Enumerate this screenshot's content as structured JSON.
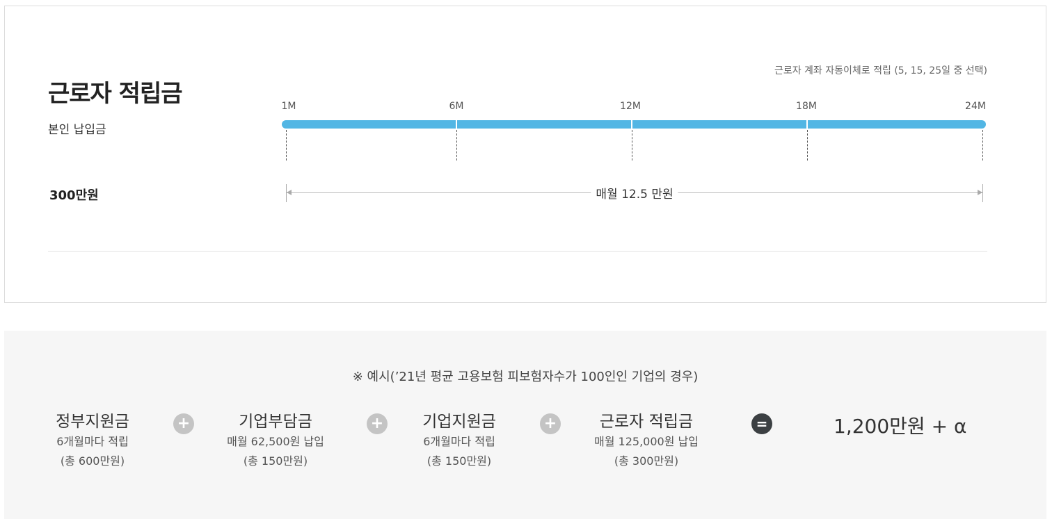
{
  "savings": {
    "title": "근로자 적립금",
    "subtitle": "본인 납입금",
    "amount": "300만원",
    "transfer_note": "근로자 계좌 자동이체로 적립 (5, 15, 25일 중 선택)",
    "ticks": [
      "1M",
      "6M",
      "12M",
      "18M",
      "24M"
    ],
    "monthly_label": "매월 12.5 만원",
    "bar_color": "#52b6e4"
  },
  "example": {
    "caption": "※ 예시(’21년 평균 고용보험 피보험자수가 100인인 기업의 경우)",
    "items": [
      {
        "name": "정부지원금",
        "desc1": "6개월마다 적립",
        "desc2": "(총 600만원)"
      },
      {
        "name": "기업부담금",
        "desc1": "매월 62,500원 납입",
        "desc2": "(총 150만원)"
      },
      {
        "name": "기업지원금",
        "desc1": "6개월마다 적립",
        "desc2": "(총 150만원)"
      },
      {
        "name": "근로자 적립금",
        "desc1": "매월 125,000원 납입",
        "desc2": "(총 300만원)"
      }
    ],
    "plus_symbol": "+",
    "equals_symbol": "=",
    "result": "1,200만원 + α",
    "background_color": "#f6f6f6"
  }
}
